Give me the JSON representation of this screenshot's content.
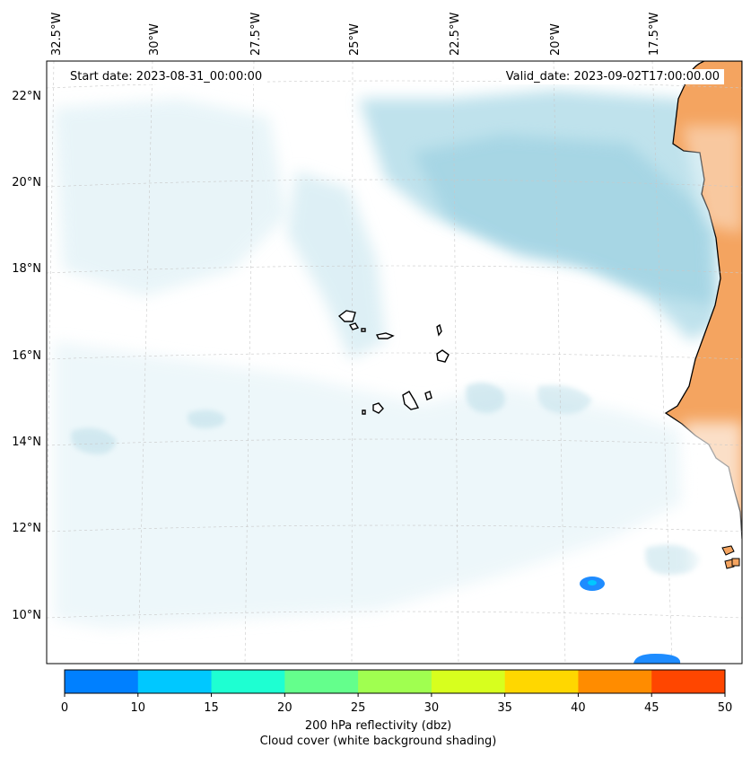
{
  "map": {
    "start_date": "Start date: 2023-08-31_00:00:00",
    "valid_date": "Valid_date: 2023-09-02T17:00:00.00",
    "lon_labels": [
      "32.5°W",
      "30°W",
      "27.5°W",
      "25°W",
      "22.5°W",
      "20°W",
      "17.5°W"
    ],
    "lat_labels": [
      "22°N",
      "20°N",
      "18°N",
      "16°N",
      "14°N",
      "12°N",
      "10°N"
    ]
  },
  "colorbar": {
    "ticks": [
      "0",
      "10",
      "15",
      "20",
      "25",
      "30",
      "35",
      "40",
      "45",
      "50"
    ],
    "colors": [
      "#0080ff",
      "#00c8ff",
      "#1effd2",
      "#64ff8c",
      "#a0ff50",
      "#d7ff1e",
      "#ffd700",
      "#ff8c00",
      "#ff4600"
    ],
    "label_line1": "200 hPa reflectivity (dbz)",
    "label_line2": "Cloud cover (white background shading)"
  },
  "colors": {
    "cloud": "#a8d8e6",
    "land": "#f4a460",
    "reflectivity_low": "#1e8cff"
  }
}
